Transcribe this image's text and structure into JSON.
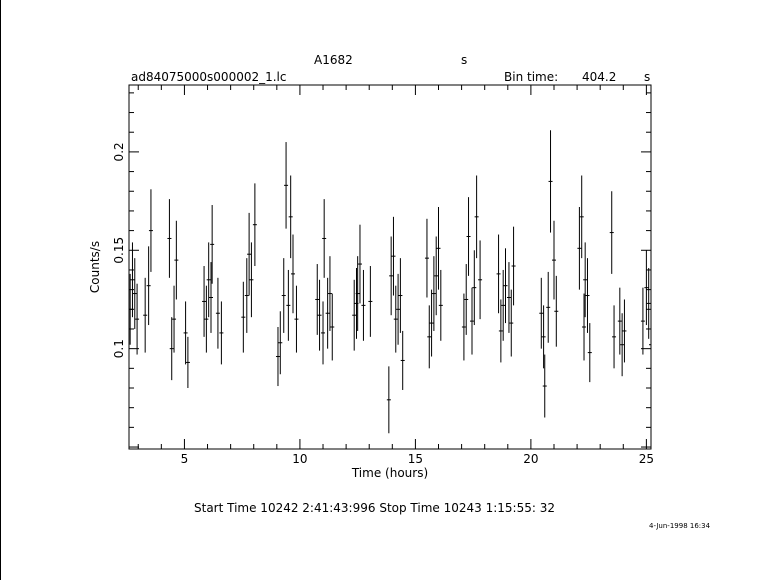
{
  "header": {
    "object": "A1682",
    "object_unit": "s",
    "file": "ad84075000s000002_1.lc",
    "bin_label": "Bin time:",
    "bin_value": "404.2",
    "bin_unit": "s"
  },
  "footer": {
    "times": "Start Time 10242  2:41:43:996    Stop Time 10243  1:15:55: 32",
    "date": "4-Jun-1998 16:34"
  },
  "chart_data": {
    "type": "scatter",
    "xlabel": "Time (hours)",
    "ylabel": "Counts/s",
    "xlim": [
      2.6,
      25.2
    ],
    "ylim": [
      0.049,
      0.234
    ],
    "xticks": [
      5,
      10,
      15,
      20,
      25
    ],
    "yticks": [
      0.1,
      0.15,
      0.2
    ],
    "xtick_labels": [
      "5",
      "10",
      "15",
      "20",
      "25"
    ],
    "ytick_labels": [
      "0.1",
      "0.15",
      "0.2"
    ],
    "grid": false,
    "points": [
      [
        2.65,
        0.12,
        0.018
      ],
      [
        2.75,
        0.135,
        0.019
      ],
      [
        2.85,
        0.128,
        0.018
      ],
      [
        2.95,
        0.115,
        0.018
      ],
      [
        3.3,
        0.117,
        0.019
      ],
      [
        3.45,
        0.132,
        0.02
      ],
      [
        3.55,
        0.16,
        0.021
      ],
      [
        4.35,
        0.156,
        0.02
      ],
      [
        4.45,
        0.1,
        0.016
      ],
      [
        4.55,
        0.115,
        0.017
      ],
      [
        4.65,
        0.145,
        0.02
      ],
      [
        5.05,
        0.108,
        0.016
      ],
      [
        5.15,
        0.093,
        0.013
      ],
      [
        5.85,
        0.124,
        0.018
      ],
      [
        5.95,
        0.115,
        0.017
      ],
      [
        6.05,
        0.135,
        0.019
      ],
      [
        6.15,
        0.126,
        0.018
      ],
      [
        6.2,
        0.153,
        0.02
      ],
      [
        6.45,
        0.118,
        0.018
      ],
      [
        6.6,
        0.108,
        0.016
      ],
      [
        7.55,
        0.116,
        0.018
      ],
      [
        7.7,
        0.127,
        0.019
      ],
      [
        7.8,
        0.148,
        0.021
      ],
      [
        7.9,
        0.135,
        0.019
      ],
      [
        8.05,
        0.163,
        0.021
      ],
      [
        9.05,
        0.096,
        0.015
      ],
      [
        9.15,
        0.103,
        0.016
      ],
      [
        9.3,
        0.127,
        0.019
      ],
      [
        9.4,
        0.183,
        0.022
      ],
      [
        9.5,
        0.122,
        0.018
      ],
      [
        9.6,
        0.167,
        0.021
      ],
      [
        9.7,
        0.138,
        0.02
      ],
      [
        9.85,
        0.115,
        0.017
      ],
      [
        10.75,
        0.125,
        0.018
      ],
      [
        10.85,
        0.117,
        0.018
      ],
      [
        11.0,
        0.108,
        0.016
      ],
      [
        11.05,
        0.156,
        0.02
      ],
      [
        11.2,
        0.118,
        0.018
      ],
      [
        11.3,
        0.128,
        0.019
      ],
      [
        11.4,
        0.111,
        0.017
      ],
      [
        12.35,
        0.117,
        0.018
      ],
      [
        12.45,
        0.123,
        0.018
      ],
      [
        12.5,
        0.128,
        0.019
      ],
      [
        12.6,
        0.143,
        0.02
      ],
      [
        12.75,
        0.122,
        0.018
      ],
      [
        13.05,
        0.124,
        0.018
      ],
      [
        13.85,
        0.074,
        0.017
      ],
      [
        13.95,
        0.137,
        0.02
      ],
      [
        14.05,
        0.147,
        0.02
      ],
      [
        14.15,
        0.115,
        0.017
      ],
      [
        14.25,
        0.12,
        0.018
      ],
      [
        14.35,
        0.127,
        0.019
      ],
      [
        14.45,
        0.094,
        0.015
      ],
      [
        15.5,
        0.146,
        0.02
      ],
      [
        15.6,
        0.106,
        0.016
      ],
      [
        15.7,
        0.113,
        0.017
      ],
      [
        15.8,
        0.128,
        0.019
      ],
      [
        15.9,
        0.137,
        0.02
      ],
      [
        16.0,
        0.151,
        0.021
      ],
      [
        16.1,
        0.122,
        0.018
      ],
      [
        17.1,
        0.111,
        0.017
      ],
      [
        17.2,
        0.125,
        0.018
      ],
      [
        17.3,
        0.157,
        0.02
      ],
      [
        17.45,
        0.114,
        0.017
      ],
      [
        17.55,
        0.131,
        0.019
      ],
      [
        17.65,
        0.167,
        0.021
      ],
      [
        17.8,
        0.135,
        0.02
      ],
      [
        18.6,
        0.138,
        0.02
      ],
      [
        18.7,
        0.109,
        0.016
      ],
      [
        18.8,
        0.122,
        0.018
      ],
      [
        18.9,
        0.132,
        0.019
      ],
      [
        19.05,
        0.126,
        0.018
      ],
      [
        19.15,
        0.113,
        0.017
      ],
      [
        19.25,
        0.142,
        0.02
      ],
      [
        20.45,
        0.118,
        0.018
      ],
      [
        20.55,
        0.106,
        0.016
      ],
      [
        20.6,
        0.081,
        0.016
      ],
      [
        20.75,
        0.121,
        0.018
      ],
      [
        20.85,
        0.185,
        0.026
      ],
      [
        21.0,
        0.145,
        0.02
      ],
      [
        21.1,
        0.119,
        0.018
      ],
      [
        22.1,
        0.151,
        0.021
      ],
      [
        22.2,
        0.167,
        0.021
      ],
      [
        22.3,
        0.111,
        0.017
      ],
      [
        22.35,
        0.135,
        0.019
      ],
      [
        22.45,
        0.127,
        0.019
      ],
      [
        22.55,
        0.098,
        0.015
      ],
      [
        23.5,
        0.159,
        0.021
      ],
      [
        23.6,
        0.106,
        0.016
      ],
      [
        23.85,
        0.114,
        0.017
      ],
      [
        23.95,
        0.102,
        0.016
      ],
      [
        24.05,
        0.109,
        0.016
      ],
      [
        24.85,
        0.114,
        0.017
      ],
      [
        25.0,
        0.131,
        0.019
      ],
      [
        25.1,
        0.123,
        0.018
      ],
      [
        25.2,
        0.102,
        0.016
      ]
    ]
  }
}
